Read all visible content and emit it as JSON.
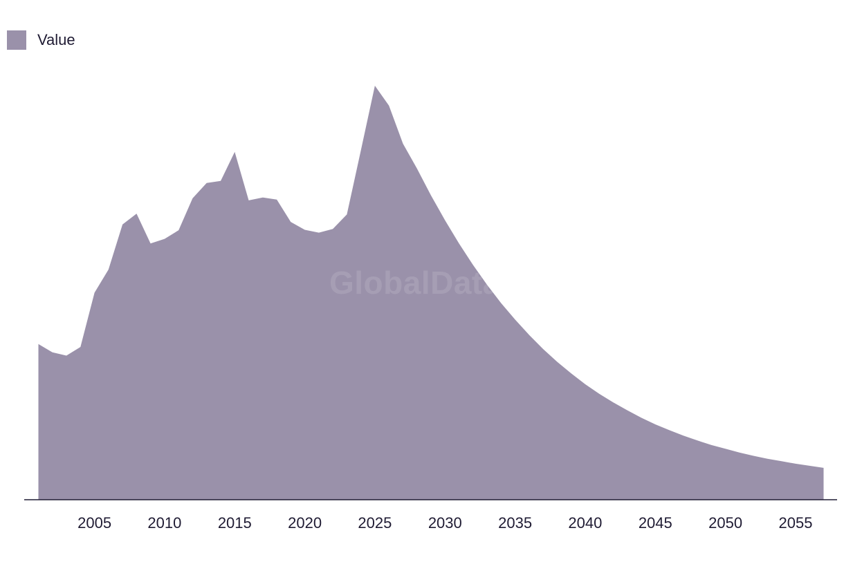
{
  "legend": {
    "label": "Value",
    "color": "#9a91aa"
  },
  "watermark": "GlobalData",
  "chart_data": {
    "type": "area",
    "title": "",
    "xlabel": "",
    "ylabel": "",
    "grid": false,
    "legend_position": "top-left",
    "xlim": [
      2001,
      2057
    ],
    "ylim": [
      0,
      100
    ],
    "x_ticks": [
      "2005",
      "2010",
      "2015",
      "2020",
      "2025",
      "2030",
      "2035",
      "2040",
      "2045",
      "2050",
      "2055"
    ],
    "series": [
      {
        "name": "Value",
        "color": "#9a91aa",
        "x": [
          2001,
          2002,
          2003,
          2004,
          2005,
          2006,
          2007,
          2008,
          2009,
          2010,
          2011,
          2012,
          2013,
          2014,
          2015,
          2016,
          2017,
          2018,
          2019,
          2020,
          2021,
          2022,
          2023,
          2024,
          2025,
          2026,
          2027,
          2028,
          2029,
          2030,
          2031,
          2032,
          2033,
          2034,
          2035,
          2036,
          2037,
          2038,
          2039,
          2040,
          2041,
          2042,
          2043,
          2044,
          2045,
          2046,
          2047,
          2048,
          2049,
          2050,
          2051,
          2052,
          2053,
          2054,
          2055,
          2056,
          2057
        ],
        "values": [
          37.6,
          35.6,
          34.8,
          36.9,
          50.0,
          55.6,
          66.5,
          69.1,
          61.9,
          63.0,
          65.1,
          72.8,
          76.5,
          77.0,
          84.0,
          72.3,
          73.0,
          72.5,
          67.1,
          65.2,
          64.5,
          65.4,
          68.9,
          84.4,
          100.0,
          95.2,
          86.0,
          80.0,
          73.5,
          67.5,
          61.9,
          56.7,
          51.9,
          47.5,
          43.5,
          39.8,
          36.4,
          33.3,
          30.5,
          27.9,
          25.6,
          23.5,
          21.6,
          19.8,
          18.2,
          16.8,
          15.5,
          14.3,
          13.2,
          12.3,
          11.4,
          10.6,
          9.9,
          9.3,
          8.7,
          8.2,
          7.7
        ]
      }
    ]
  }
}
